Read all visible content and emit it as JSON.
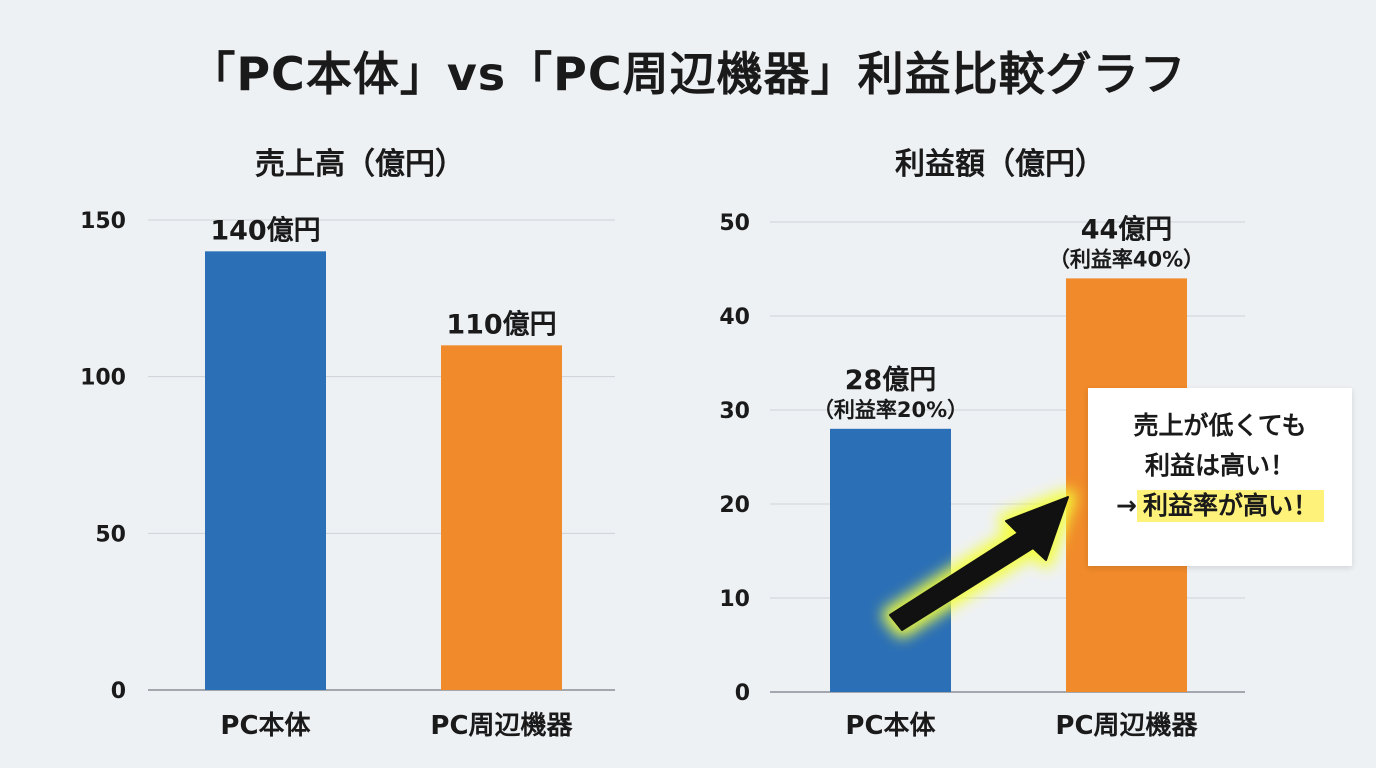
{
  "title": "「PC本体」vs「PC周辺機器」利益比較グラフ",
  "colors": {
    "pc_body": "#2b6fb6",
    "peripherals": "#f08a2a",
    "arrow": "#111111",
    "glow": "#f4ff3a",
    "highlight": "#fff27a"
  },
  "chart_data": [
    {
      "type": "bar",
      "title": "売上高（億円）",
      "categories": [
        "PC本体",
        "PC周辺機器"
      ],
      "values": [
        140,
        110
      ],
      "data_labels": [
        "140億円",
        "110億円"
      ],
      "data_sublabels": [
        "",
        ""
      ],
      "ylim": [
        0,
        150
      ],
      "yticks": [
        0,
        50,
        100,
        150
      ],
      "grid": true
    },
    {
      "type": "bar",
      "title": "利益額（億円）",
      "categories": [
        "PC本体",
        "PC周辺機器"
      ],
      "values": [
        28,
        44
      ],
      "data_labels": [
        "28億円",
        "44億円"
      ],
      "data_sublabels": [
        "（利益率20%）",
        "（利益率40%）"
      ],
      "ylim": [
        0,
        50
      ],
      "yticks": [
        0,
        10,
        20,
        30,
        40,
        50
      ],
      "grid": true
    }
  ],
  "callout": {
    "line1": "売上が低くても",
    "line2": "利益は高い！",
    "arrow_text": "→",
    "highlight": "利益率が高い！"
  }
}
